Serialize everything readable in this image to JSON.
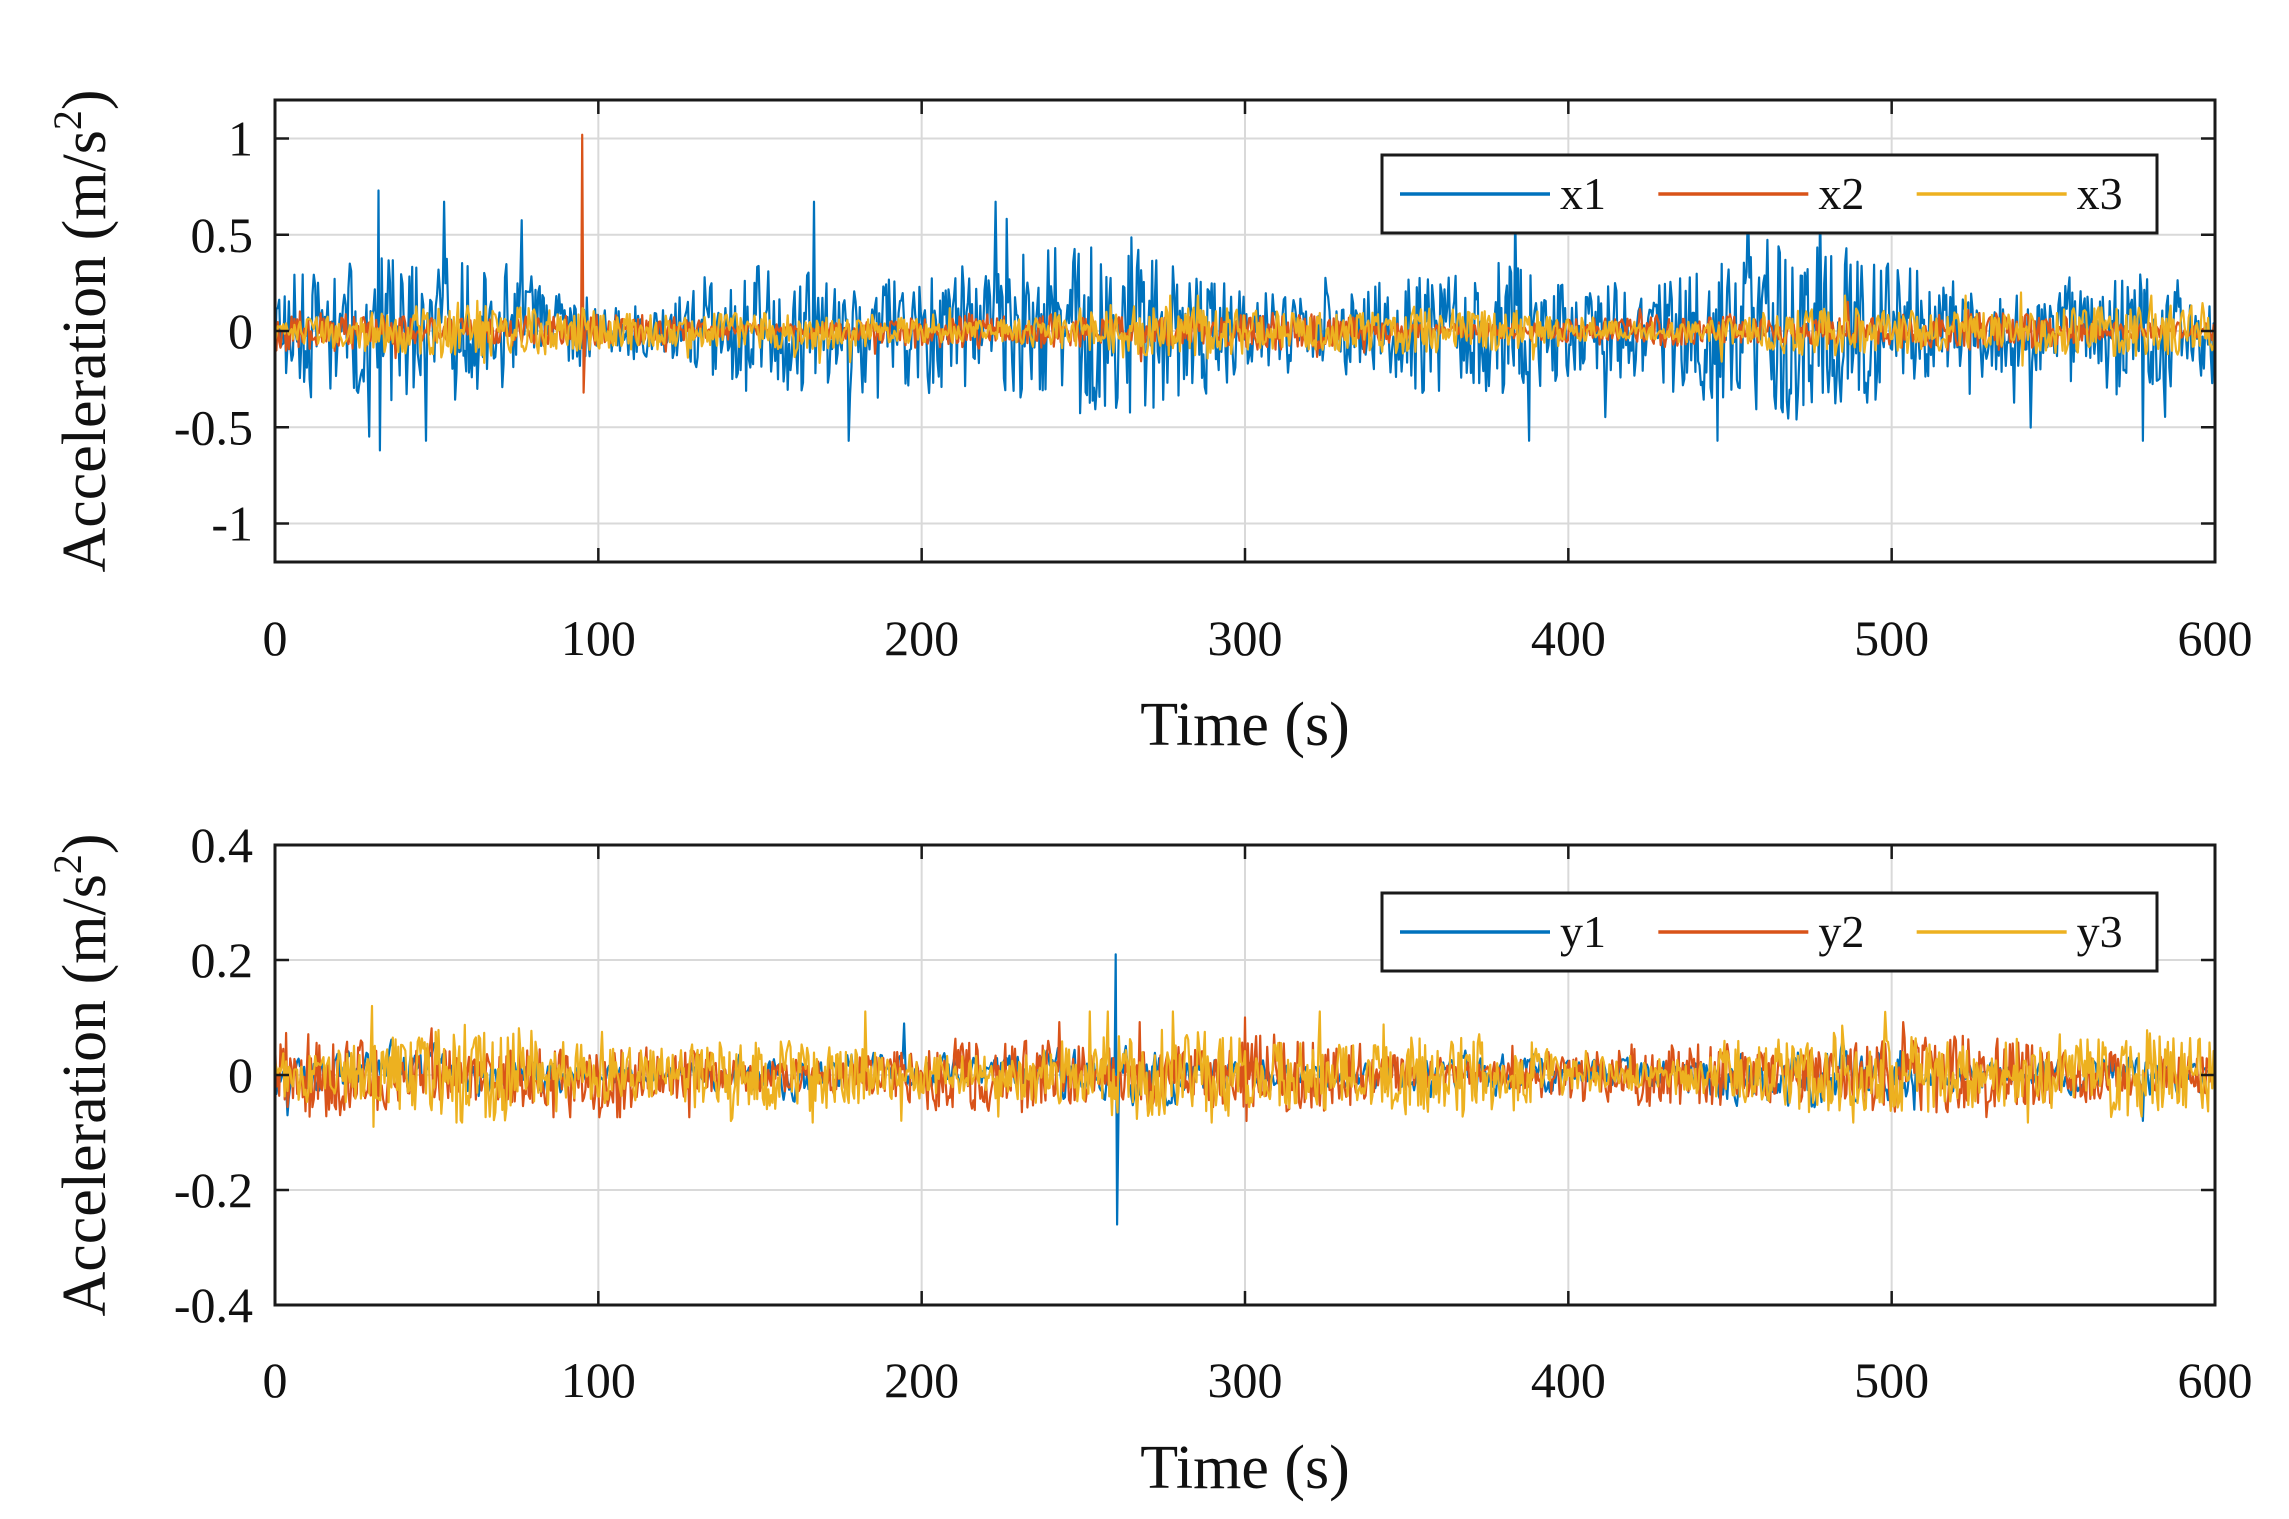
{
  "chart_data": [
    {
      "type": "line",
      "title": "",
      "xlabel": "Time (s)",
      "ylabel": "Acceleration (m/s",
      "ylabel_sup": "2",
      "ylabel_close": ")",
      "xlim": [
        0,
        600
      ],
      "ylim": [
        -1.2,
        1.2
      ],
      "xticks": [
        0,
        100,
        200,
        300,
        400,
        500,
        600
      ],
      "xtick_labels": [
        "0",
        "100",
        "200",
        "300",
        "400",
        "500",
        "600"
      ],
      "yticks": [
        -1,
        -0.5,
        0,
        0.5,
        1
      ],
      "ytick_labels": [
        "-1",
        "-0.5",
        "0",
        "0.5",
        "1"
      ],
      "grid": true,
      "legend_position": "top-right",
      "series": [
        {
          "name": "x1",
          "color": "#0072BD",
          "amplitude": 0.22,
          "peak": 0.73,
          "peak_at": 32,
          "trough": -0.62
        },
        {
          "name": "x2",
          "color": "#D95319",
          "amplitude": 0.05,
          "peak": 1.02,
          "peak_at": 95,
          "trough": -0.32
        },
        {
          "name": "x3",
          "color": "#EDB120",
          "amplitude": 0.07,
          "peak": 0.2,
          "peak_at": 540,
          "trough": -0.18
        }
      ]
    },
    {
      "type": "line",
      "title": "",
      "xlabel": "Time (s)",
      "ylabel": "Acceleration (m/s",
      "ylabel_sup": "2",
      "ylabel_close": ")",
      "xlim": [
        0,
        600
      ],
      "ylim": [
        -0.4,
        0.4
      ],
      "xticks": [
        0,
        100,
        200,
        300,
        400,
        500,
        600
      ],
      "xtick_labels": [
        "0",
        "100",
        "200",
        "300",
        "400",
        "500",
        "600"
      ],
      "yticks": [
        -0.4,
        -0.2,
        0,
        0.2,
        0.4
      ],
      "ytick_labels": [
        "-0.4",
        "-0.2",
        "0",
        "0.2",
        "0.4"
      ],
      "grid": true,
      "legend_position": "top-right",
      "series": [
        {
          "name": "y1",
          "color": "#0072BD",
          "amplitude": 0.04,
          "peak": 0.21,
          "peak_at": 260,
          "trough": -0.26
        },
        {
          "name": "y2",
          "color": "#D95319",
          "amplitude": 0.035,
          "peak": 0.1,
          "peak_at": 300,
          "trough": -0.08
        },
        {
          "name": "y3",
          "color": "#EDB120",
          "amplitude": 0.04,
          "peak": 0.12,
          "peak_at": 30,
          "trough": -0.09
        }
      ]
    }
  ]
}
